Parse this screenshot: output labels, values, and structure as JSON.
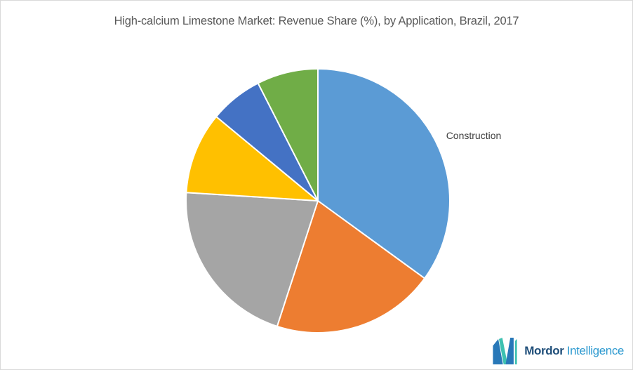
{
  "chart_data": {
    "type": "pie",
    "title": "High-calcium Limestone Market: Revenue Share (%), by Application, Brazil, 2017",
    "unit": "%",
    "start_angle_deg": 0,
    "direction": "clockwise",
    "legend": "none",
    "label_color": "#404040",
    "title_color": "#595959",
    "slices": [
      {
        "label": "Construction",
        "value": 35,
        "color": "#5B9BD5"
      },
      {
        "label": "",
        "value": 20,
        "color": "#ED7D31"
      },
      {
        "label": "",
        "value": 21,
        "color": "#A5A5A5"
      },
      {
        "label": "",
        "value": 10,
        "color": "#FFC000"
      },
      {
        "label": "",
        "value": 6.5,
        "color": "#4472C4"
      },
      {
        "label": "",
        "value": 7.5,
        "color": "#70AD47"
      }
    ]
  },
  "logo": {
    "brand_bold": "Mordor",
    "brand_regular": "Intelligence",
    "mark_blue": "#2878b8",
    "mark_teal": "#3ec1b1",
    "text_bold_color": "#1f4e79",
    "text_regular_color": "#2e9ad0"
  },
  "page": {
    "background": "#ffffff",
    "border_color": "#d9d9d9"
  }
}
